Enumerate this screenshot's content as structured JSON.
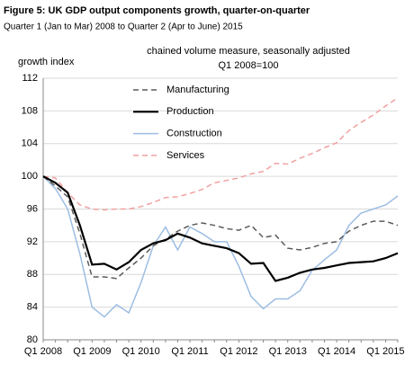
{
  "chart_data": {
    "type": "line",
    "title": "Figure 5: UK GDP output components growth, quarter-on-quarter",
    "subtitle": "Quarter 1 (Jan to Mar) 2008 to Quarter 2 (Apr to June) 2015",
    "y_label": "growth index",
    "annotation": [
      "chained volume measure, seasonally adjusted",
      "Q1 2008=100"
    ],
    "categories": [
      "Q1 2008",
      null,
      null,
      null,
      "Q1 2009",
      null,
      null,
      null,
      "Q1 2010",
      null,
      null,
      null,
      "Q1 2011",
      null,
      null,
      null,
      "Q1 2012",
      null,
      null,
      null,
      "Q1 2013",
      null,
      null,
      null,
      "Q1 2014",
      null,
      null,
      null,
      "Q1 2015",
      null
    ],
    "ylim": [
      80,
      112
    ],
    "yticks": [
      80,
      84,
      88,
      92,
      96,
      100,
      104,
      108,
      112
    ],
    "grid": true,
    "legend": "upper-left",
    "series": [
      {
        "name": "Manufacturing",
        "color": "#5a5a5a",
        "dash": true,
        "values": [
          100,
          98.8,
          97.5,
          93,
          87.7,
          87.7,
          87.5,
          88.8,
          90,
          91.5,
          92.3,
          93.3,
          94,
          94.3,
          94,
          93.6,
          93.4,
          94,
          92.5,
          92.8,
          91.2,
          91,
          91.3,
          91.8,
          92,
          93.3,
          94,
          94.5,
          94.5,
          94
        ]
      },
      {
        "name": "Production",
        "color": "#000000",
        "dash": false,
        "values": [
          100,
          99.2,
          98,
          94,
          89.2,
          89.3,
          88.6,
          89.5,
          91,
          91.8,
          92.2,
          93,
          92.5,
          91.8,
          91.5,
          91.2,
          90.6,
          89.3,
          89.4,
          87.2,
          87.6,
          88.2,
          88.6,
          88.8,
          89.1,
          89.4,
          89.5,
          89.6,
          90,
          90.6
        ]
      },
      {
        "name": "Construction",
        "color": "#9dbde3",
        "dash": false,
        "values": [
          100,
          98.5,
          96,
          90.5,
          84,
          82.8,
          84.3,
          83.3,
          87,
          91.5,
          93.8,
          91,
          93.8,
          93,
          92,
          92,
          89,
          85.3,
          83.8,
          85,
          85,
          86,
          88.5,
          89.8,
          91,
          94,
          95.5,
          96,
          96.5,
          97.6
        ]
      },
      {
        "name": "Services",
        "color": "#f2a0a0",
        "dash": true,
        "values": [
          100,
          99.8,
          98,
          96.5,
          96,
          95.9,
          96,
          96,
          96.3,
          96.8,
          97.4,
          97.5,
          97.9,
          98.4,
          99.2,
          99.5,
          99.8,
          100.3,
          100.6,
          101.6,
          101.5,
          102.2,
          102.8,
          103.5,
          104.1,
          105.6,
          106.6,
          107.5,
          108.6,
          109.6
        ]
      }
    ]
  }
}
